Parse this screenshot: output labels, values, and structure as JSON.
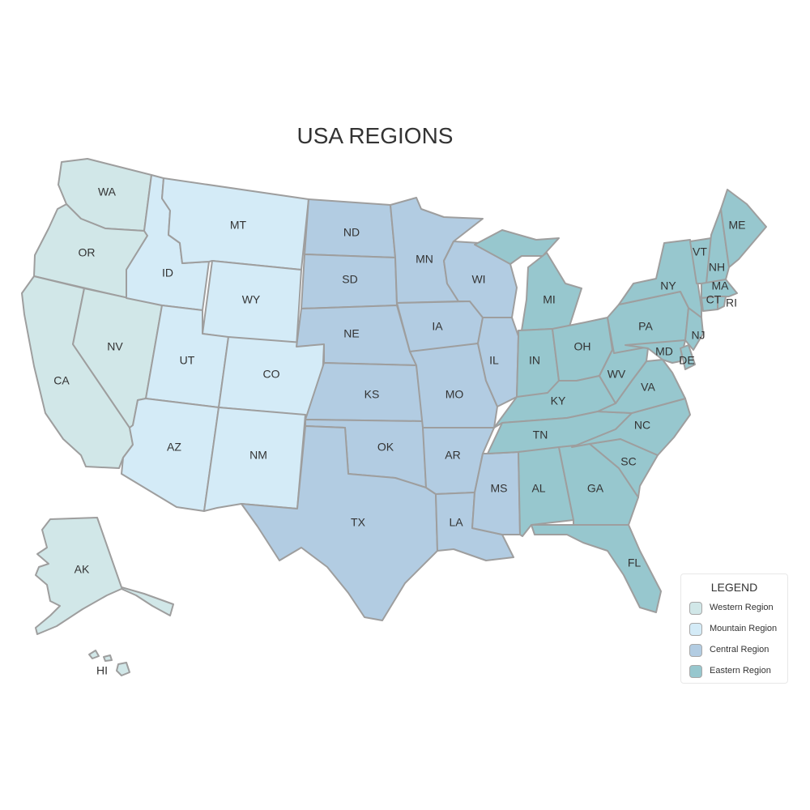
{
  "title": "USA REGIONS",
  "regions": {
    "western": {
      "name": "Western Region",
      "color": "#d1e7e8"
    },
    "mountain": {
      "name": "Mountain Region",
      "color": "#d4ebf7"
    },
    "central": {
      "name": "Central Region",
      "color": "#b2cce2"
    },
    "eastern": {
      "name": "Eastern Region",
      "color": "#97c7ce"
    }
  },
  "legend": {
    "title": "LEGEND",
    "items": [
      {
        "label": "Western Region",
        "color": "#d1e7e8"
      },
      {
        "label": "Mountain Region",
        "color": "#d4ebf7"
      },
      {
        "label": "Central Region",
        "color": "#b2cce2"
      },
      {
        "label": "Eastern Region",
        "color": "#97c7ce"
      }
    ]
  },
  "states": [
    {
      "abbr": "WA",
      "region": "western"
    },
    {
      "abbr": "OR",
      "region": "western"
    },
    {
      "abbr": "CA",
      "region": "western"
    },
    {
      "abbr": "NV",
      "region": "western"
    },
    {
      "abbr": "AK",
      "region": "western"
    },
    {
      "abbr": "HI",
      "region": "western"
    },
    {
      "abbr": "ID",
      "region": "mountain"
    },
    {
      "abbr": "MT",
      "region": "mountain"
    },
    {
      "abbr": "WY",
      "region": "mountain"
    },
    {
      "abbr": "UT",
      "region": "mountain"
    },
    {
      "abbr": "CO",
      "region": "mountain"
    },
    {
      "abbr": "AZ",
      "region": "mountain"
    },
    {
      "abbr": "NM",
      "region": "mountain"
    },
    {
      "abbr": "ND",
      "region": "central"
    },
    {
      "abbr": "SD",
      "region": "central"
    },
    {
      "abbr": "NE",
      "region": "central"
    },
    {
      "abbr": "KS",
      "region": "central"
    },
    {
      "abbr": "OK",
      "region": "central"
    },
    {
      "abbr": "TX",
      "region": "central"
    },
    {
      "abbr": "MN",
      "region": "central"
    },
    {
      "abbr": "IA",
      "region": "central"
    },
    {
      "abbr": "MO",
      "region": "central"
    },
    {
      "abbr": "AR",
      "region": "central"
    },
    {
      "abbr": "LA",
      "region": "central"
    },
    {
      "abbr": "WI",
      "region": "central"
    },
    {
      "abbr": "IL",
      "region": "central"
    },
    {
      "abbr": "MS",
      "region": "central"
    },
    {
      "abbr": "MI",
      "region": "eastern"
    },
    {
      "abbr": "IN",
      "region": "eastern"
    },
    {
      "abbr": "OH",
      "region": "eastern"
    },
    {
      "abbr": "KY",
      "region": "eastern"
    },
    {
      "abbr": "TN",
      "region": "eastern"
    },
    {
      "abbr": "AL",
      "region": "eastern"
    },
    {
      "abbr": "GA",
      "region": "eastern"
    },
    {
      "abbr": "FL",
      "region": "eastern"
    },
    {
      "abbr": "SC",
      "region": "eastern"
    },
    {
      "abbr": "NC",
      "region": "eastern"
    },
    {
      "abbr": "VA",
      "region": "eastern"
    },
    {
      "abbr": "WV",
      "region": "eastern"
    },
    {
      "abbr": "PA",
      "region": "eastern"
    },
    {
      "abbr": "NY",
      "region": "eastern"
    },
    {
      "abbr": "VT",
      "region": "eastern"
    },
    {
      "abbr": "NH",
      "region": "eastern"
    },
    {
      "abbr": "ME",
      "region": "eastern"
    },
    {
      "abbr": "MA",
      "region": "eastern"
    },
    {
      "abbr": "RI",
      "region": "eastern"
    },
    {
      "abbr": "CT",
      "region": "eastern"
    },
    {
      "abbr": "NJ",
      "region": "eastern"
    },
    {
      "abbr": "DE",
      "region": "eastern"
    },
    {
      "abbr": "MD",
      "region": "eastern"
    }
  ]
}
